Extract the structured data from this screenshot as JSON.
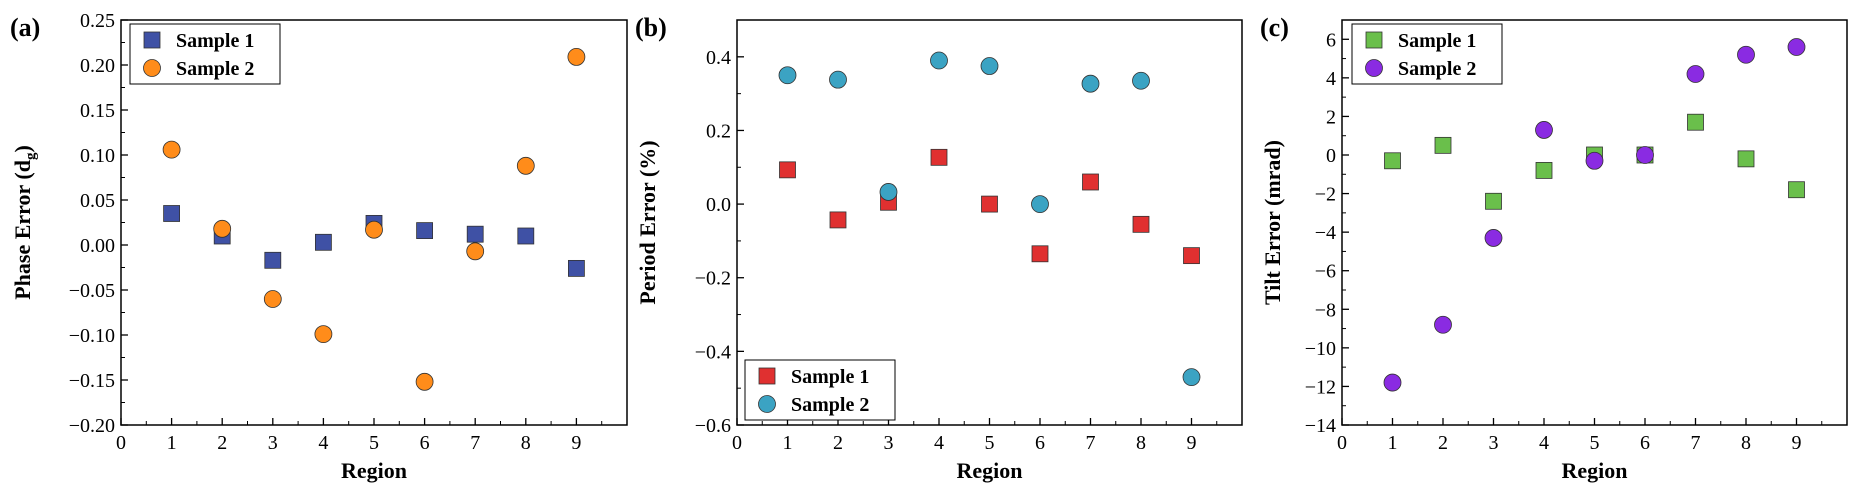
{
  "chart_data": [
    {
      "type": "scatter",
      "panel_label": "(a)",
      "xlabel": "Region",
      "ylabel": "Phase Error (d",
      "ylabel_sub": "g",
      "ylabel_end": ")",
      "xlim": [
        0,
        10
      ],
      "ylim": [
        -0.2,
        0.25
      ],
      "xticks": [
        "0",
        "1",
        "2",
        "3",
        "4",
        "5",
        "6",
        "7",
        "8",
        "9"
      ],
      "yticks": [
        "-0.20",
        "-0.15",
        "-0.10",
        "-0.05",
        "0.00",
        "0.05",
        "0.10",
        "0.15",
        "0.20",
        "0.25"
      ],
      "legend_position": "top-left",
      "grid": false,
      "series": [
        {
          "name": "Sample 1",
          "marker": "square",
          "color": "#3F51A5",
          "x": [
            1,
            2,
            3,
            4,
            5,
            6,
            7,
            8,
            9
          ],
          "y": [
            0.035,
            0.01,
            -0.017,
            0.003,
            0.024,
            0.016,
            0.012,
            0.01,
            -0.026
          ]
        },
        {
          "name": "Sample 2",
          "marker": "circle",
          "color": "#FF8C1A",
          "x": [
            1,
            2,
            3,
            4,
            5,
            6,
            7,
            8,
            9
          ],
          "y": [
            0.106,
            0.018,
            -0.06,
            -0.099,
            0.017,
            -0.152,
            -0.007,
            0.088,
            0.209
          ]
        }
      ]
    },
    {
      "type": "scatter",
      "panel_label": "(b)",
      "xlabel": "Region",
      "ylabel": "Period Error (%)",
      "xlim": [
        0,
        10
      ],
      "ylim": [
        -0.6,
        0.5
      ],
      "xticks": [
        "0",
        "1",
        "2",
        "3",
        "4",
        "5",
        "6",
        "7",
        "8",
        "9"
      ],
      "yticks": [
        "-0.6",
        "-0.4",
        "-0.2",
        "0.0",
        "0.2",
        "0.4"
      ],
      "legend_position": "bottom-left",
      "grid": false,
      "series": [
        {
          "name": "Sample 1",
          "marker": "square",
          "color": "#E03030",
          "x": [
            1,
            2,
            3,
            4,
            5,
            6,
            7,
            8,
            9
          ],
          "y": [
            0.093,
            -0.043,
            0.005,
            0.127,
            0.0,
            -0.135,
            0.06,
            -0.055,
            -0.14
          ]
        },
        {
          "name": "Sample 2",
          "marker": "circle",
          "color": "#3BA3C3",
          "x": [
            1,
            2,
            3,
            4,
            5,
            6,
            7,
            8,
            9
          ],
          "y": [
            0.35,
            0.338,
            0.033,
            0.39,
            0.375,
            0.0,
            0.327,
            0.335,
            -0.47
          ]
        }
      ]
    },
    {
      "type": "scatter",
      "panel_label": "(c)",
      "xlabel": "Region",
      "ylabel": "Tilt Error (mrad)",
      "xlim": [
        0,
        10
      ],
      "ylim": [
        -14,
        7
      ],
      "xticks": [
        "0",
        "1",
        "2",
        "3",
        "4",
        "5",
        "6",
        "7",
        "8",
        "9"
      ],
      "yticks": [
        "-14",
        "-12",
        "-10",
        "-8",
        "-6",
        "-4",
        "-2",
        "0",
        "2",
        "4",
        "6"
      ],
      "legend_position": "top-left",
      "grid": false,
      "series": [
        {
          "name": "Sample 1",
          "marker": "square",
          "color": "#6ABF4B",
          "x": [
            1,
            2,
            3,
            4,
            5,
            6,
            7,
            8,
            9
          ],
          "y": [
            -0.3,
            0.5,
            -2.4,
            -0.8,
            0.0,
            0.0,
            1.7,
            -0.2,
            -1.8
          ]
        },
        {
          "name": "Sample 2",
          "marker": "circle",
          "color": "#8A2BE2",
          "x": [
            1,
            2,
            3,
            4,
            5,
            6,
            7,
            8,
            9
          ],
          "y": [
            -11.8,
            -8.8,
            -4.3,
            1.3,
            -0.3,
            0.0,
            4.2,
            5.2,
            5.6
          ]
        }
      ]
    }
  ]
}
